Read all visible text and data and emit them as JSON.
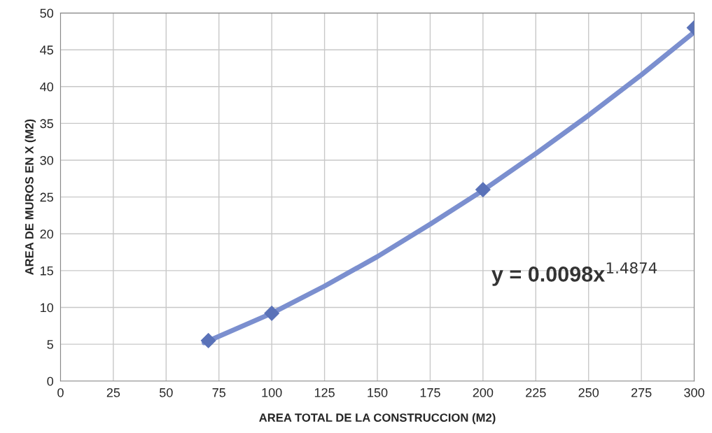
{
  "chart_data": {
    "type": "scatter",
    "xlabel": "AREA TOTAL DE LA CONSTRUCCION (M2)",
    "ylabel": "AREA DE MUROS EN X (M2)",
    "series": [
      {
        "color": "#5a72b8",
        "x": [
          70,
          100,
          200,
          300
        ],
        "values": [
          5.5,
          9.2,
          26,
          48
        ],
        "marker": "diamond"
      },
      {
        "type": "line",
        "color": "#7b8fcf",
        "x": [
          68,
          100,
          125,
          150,
          175,
          200,
          225,
          250,
          275,
          300
        ],
        "values": [
          5.2,
          9.2,
          12.9,
          16.9,
          21.3,
          25.9,
          30.9,
          36.1,
          41.6,
          47.4
        ],
        "marker": "none",
        "line_style": "solid"
      }
    ],
    "xlim": [
      0,
      300
    ],
    "xticks": [
      0,
      25,
      50,
      75,
      100,
      125,
      150,
      175,
      200,
      225,
      250,
      275,
      300
    ],
    "ylim": [
      0,
      50
    ],
    "yticks": [
      0,
      5,
      10,
      15,
      20,
      25,
      30,
      35,
      40,
      45,
      50
    ],
    "grid": true,
    "legend": false,
    "annotations": [
      "y = 0.0098x$^{1.4874}$"
    ]
  }
}
